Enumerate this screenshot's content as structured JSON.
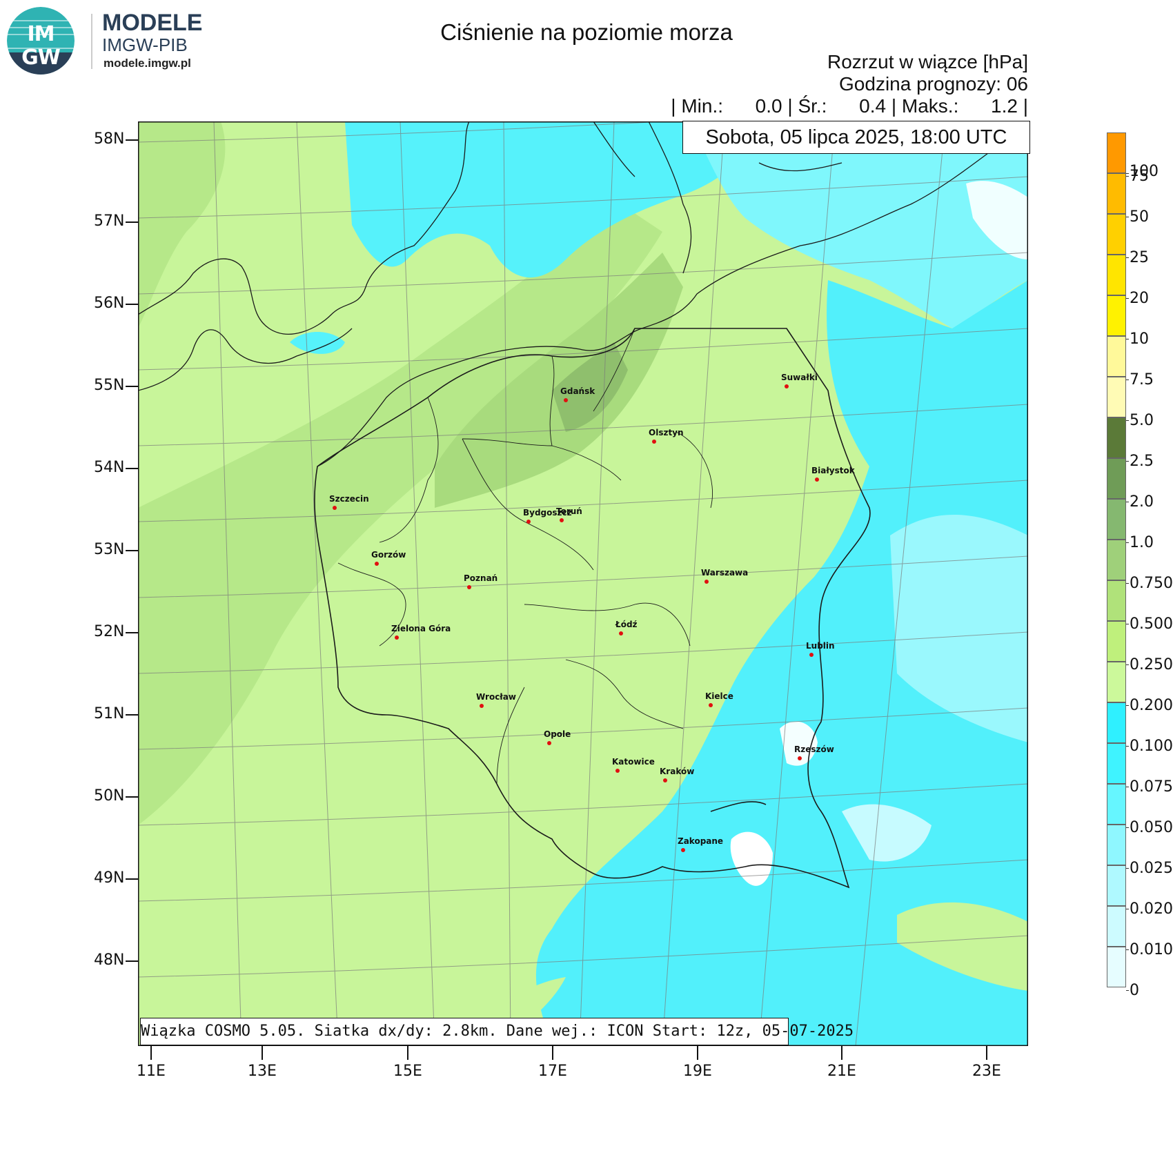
{
  "branding": {
    "logo_top": "IM",
    "logo_bottom": "GW",
    "name": "MODELE",
    "org": "IMGW-PIB",
    "url": "modele.imgw.pl"
  },
  "title": "Ciśnienie na poziomie morza",
  "header": {
    "line1": "Rozrzut w wiązce [hPa]",
    "line2": "Godzina prognozy: 06",
    "stats": "| Min.:      0.0 | Śr.:      0.4 | Maks.:      1.2 |"
  },
  "date_label": "Sobota, 05 lipca 2025, 18:00 UTC",
  "footer": "Wiązka COSMO 5.05. Siatka dx/dy: 2.8km. Dane wej.: ICON Start: 12z, 05-07-2025",
  "latitude_ticks": [
    "58N",
    "57N",
    "56N",
    "55N",
    "54N",
    "53N",
    "52N",
    "51N",
    "50N",
    "49N",
    "48N"
  ],
  "longitude_ticks": [
    "11E",
    "13E",
    "15E",
    "17E",
    "19E",
    "21E",
    "23E"
  ],
  "legend": {
    "labels": [
      "100",
      "75",
      "50",
      "25",
      "20",
      "10",
      "7.5",
      "5.0",
      "2.5",
      "2.0",
      "1.0",
      "0.750",
      "0.500",
      "0.250",
      "0.200",
      "0.100",
      "0.075",
      "0.050",
      "0.025",
      "0.020",
      "0.010",
      "0"
    ],
    "colors": [
      "#ff9900",
      "#ffbb00",
      "#ffd000",
      "#ffe500",
      "#fff200",
      "#fff99a",
      "#fffbb5",
      "#5b7a38",
      "#6f9c57",
      "#85b870",
      "#9fd07a",
      "#b0e27a",
      "#bff07c",
      "#ccf99b",
      "#2ff0ff",
      "#3ff3ff",
      "#66f6ff",
      "#8ff7ff",
      "#aff9ff",
      "#cdfbff",
      "#e6fdff",
      "#ffffff"
    ]
  },
  "cities": [
    {
      "name": "Gdańsk"
    },
    {
      "name": "Suwałki"
    },
    {
      "name": "Olsztyn"
    },
    {
      "name": "Białystok"
    },
    {
      "name": "Szczecin"
    },
    {
      "name": "Bydgoszcz"
    },
    {
      "name": "Toruń"
    },
    {
      "name": "Gorzów"
    },
    {
      "name": "Poznań"
    },
    {
      "name": "Warszawa"
    },
    {
      "name": "Łódź"
    },
    {
      "name": "Zielona Góra"
    },
    {
      "name": "Lublin"
    },
    {
      "name": "Wrocław"
    },
    {
      "name": "Kielce"
    },
    {
      "name": "Opole"
    },
    {
      "name": "Rzeszów"
    },
    {
      "name": "Katowice"
    },
    {
      "name": "Kraków"
    },
    {
      "name": "Zakopane"
    }
  ]
}
